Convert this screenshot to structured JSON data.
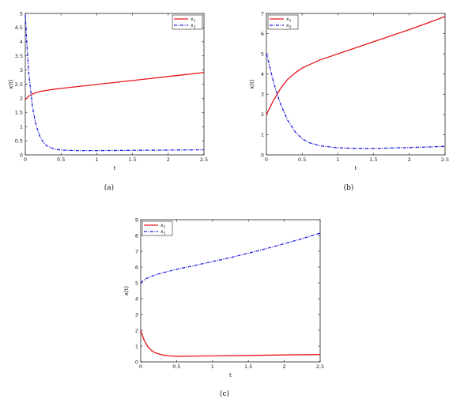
{
  "chart_data": [
    {
      "type": "line",
      "panel": "a",
      "caption": "(a)",
      "xlabel": "t",
      "ylabel": "x(t)",
      "xlim": [
        0,
        2.5
      ],
      "ylim": [
        0,
        5
      ],
      "xticks": [
        "0",
        "0.5",
        "1",
        "1.5",
        "2",
        "2.5"
      ],
      "yticks": [
        "0",
        "0.5",
        "1",
        "1.5",
        "2",
        "2.5",
        "3",
        "3.5",
        "4",
        "4.5",
        "5"
      ],
      "legend_position": "top-right",
      "series": [
        {
          "name": "x",
          "subscript": "1",
          "color": "#e8141c",
          "style": "solid",
          "x": [
            0,
            0.05,
            0.1,
            0.15,
            0.2,
            0.3,
            0.4,
            0.5,
            0.75,
            1.0,
            1.25,
            1.5,
            1.75,
            2.0,
            2.25,
            2.5
          ],
          "y": [
            1.95,
            2.08,
            2.15,
            2.2,
            2.24,
            2.28,
            2.32,
            2.35,
            2.42,
            2.49,
            2.56,
            2.63,
            2.7,
            2.77,
            2.84,
            2.91
          ]
        },
        {
          "name": "x",
          "subscript": "2",
          "color": "#1a1adb",
          "style": "dashdot",
          "x": [
            0,
            0.02,
            0.05,
            0.1,
            0.15,
            0.2,
            0.25,
            0.3,
            0.4,
            0.5,
            0.6,
            0.75,
            1.0,
            1.5,
            2.0,
            2.5
          ],
          "y": [
            4.95,
            4.0,
            2.85,
            1.7,
            1.05,
            0.68,
            0.45,
            0.32,
            0.21,
            0.17,
            0.16,
            0.15,
            0.15,
            0.16,
            0.17,
            0.18
          ]
        }
      ]
    },
    {
      "type": "line",
      "panel": "b",
      "caption": "(b)",
      "xlabel": "t",
      "ylabel": "x(t)",
      "xlim": [
        0,
        2.5
      ],
      "ylim": [
        0,
        7
      ],
      "xticks": [
        "0",
        "0.5",
        "1",
        "1.5",
        "2",
        "2.5"
      ],
      "yticks": [
        "0",
        "1",
        "2",
        "3",
        "4",
        "5",
        "6",
        "7"
      ],
      "legend_position": "top-left",
      "series": [
        {
          "name": "x",
          "subscript": "1",
          "color": "#e8141c",
          "style": "solid",
          "x": [
            0,
            0.05,
            0.1,
            0.15,
            0.2,
            0.3,
            0.4,
            0.5,
            0.75,
            1.0,
            1.25,
            1.5,
            1.75,
            2.0,
            2.25,
            2.5
          ],
          "y": [
            2.0,
            2.35,
            2.7,
            3.0,
            3.3,
            3.75,
            4.05,
            4.3,
            4.7,
            5.0,
            5.3,
            5.6,
            5.9,
            6.2,
            6.52,
            6.85
          ]
        },
        {
          "name": "x",
          "subscript": "2",
          "color": "#1a1adb",
          "style": "dashdot",
          "x": [
            0,
            0.02,
            0.05,
            0.1,
            0.15,
            0.2,
            0.3,
            0.4,
            0.5,
            0.6,
            0.75,
            1.0,
            1.25,
            1.5,
            2.0,
            2.5
          ],
          "y": [
            5.0,
            4.75,
            4.3,
            3.6,
            3.0,
            2.5,
            1.7,
            1.15,
            0.8,
            0.6,
            0.45,
            0.35,
            0.32,
            0.32,
            0.36,
            0.42
          ]
        }
      ]
    },
    {
      "type": "line",
      "panel": "c",
      "caption": "(c)",
      "xlabel": "t",
      "ylabel": "x(t)",
      "xlim": [
        0,
        2.5
      ],
      "ylim": [
        0,
        9
      ],
      "xticks": [
        "0",
        "0.5",
        "1",
        "1.5",
        "2",
        "2.5"
      ],
      "yticks": [
        "0",
        "1",
        "2",
        "3",
        "4",
        "5",
        "6",
        "7",
        "8",
        "9"
      ],
      "legend_position": "top-left",
      "series": [
        {
          "name": "x",
          "subscript": "1",
          "color": "#e8141c",
          "style": "solid",
          "x": [
            0,
            0.02,
            0.05,
            0.1,
            0.15,
            0.2,
            0.3,
            0.4,
            0.5,
            0.6,
            0.75,
            1.0,
            1.5,
            2.0,
            2.5
          ],
          "y": [
            2.0,
            1.7,
            1.35,
            0.95,
            0.72,
            0.58,
            0.44,
            0.38,
            0.36,
            0.36,
            0.37,
            0.38,
            0.41,
            0.44,
            0.47
          ]
        },
        {
          "name": "x",
          "subscript": "2",
          "color": "#1a1adb",
          "style": "dashdot",
          "x": [
            0,
            0.05,
            0.1,
            0.15,
            0.2,
            0.3,
            0.4,
            0.5,
            0.75,
            1.0,
            1.25,
            1.5,
            1.75,
            2.0,
            2.25,
            2.5
          ],
          "y": [
            5.0,
            5.2,
            5.32,
            5.42,
            5.5,
            5.63,
            5.75,
            5.86,
            6.1,
            6.35,
            6.6,
            6.88,
            7.17,
            7.48,
            7.8,
            8.15
          ]
        }
      ]
    }
  ]
}
